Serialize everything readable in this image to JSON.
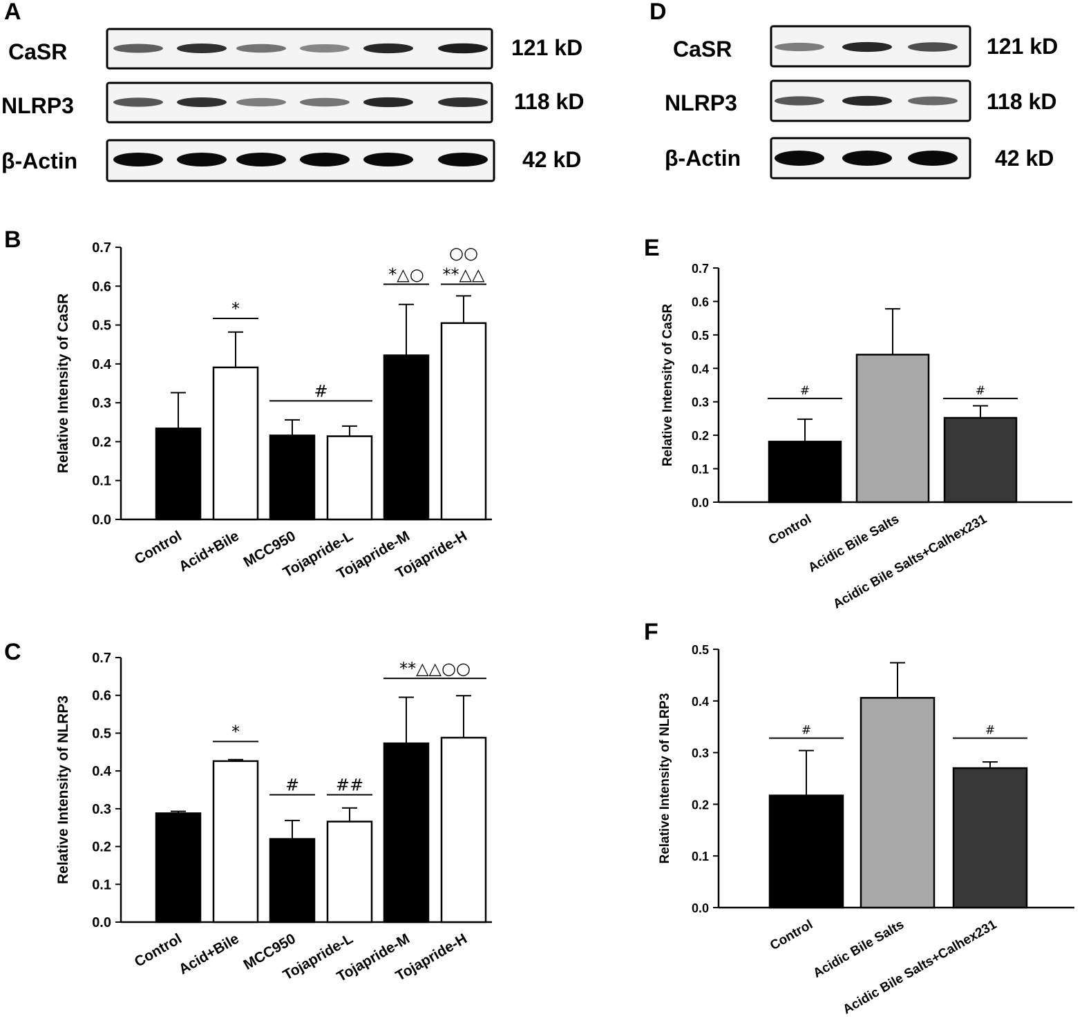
{
  "panels": {
    "A": "A",
    "B": "B",
    "C": "C",
    "D": "D",
    "E": "E",
    "F": "F"
  },
  "blots": [
    {
      "panel": "A",
      "rows": [
        {
          "protein": "CaSR",
          "size": "121 kD",
          "intensity": [
            0.55,
            0.8,
            0.45,
            0.35,
            0.85,
            0.9
          ]
        },
        {
          "protein": "NLRP3",
          "size": "118 kD",
          "intensity": [
            0.6,
            0.8,
            0.4,
            0.45,
            0.85,
            0.8
          ]
        },
        {
          "protein": "β-Actin",
          "size": "42 kD",
          "intensity": [
            1,
            1,
            1,
            1,
            1,
            1
          ]
        }
      ]
    },
    {
      "panel": "D",
      "rows": [
        {
          "protein": "CaSR",
          "size": "121 kD",
          "intensity": [
            0.4,
            0.85,
            0.65
          ]
        },
        {
          "protein": "NLRP3",
          "size": "118 kD",
          "intensity": [
            0.6,
            0.85,
            0.5
          ]
        },
        {
          "protein": "β-Actin",
          "size": "42 kD",
          "intensity": [
            1,
            1,
            1
          ]
        }
      ]
    }
  ],
  "chart_data": [
    {
      "panel": "B",
      "type": "bar",
      "ylabel": "Relative Intensity of CaSR",
      "ylim": [
        0,
        0.7
      ],
      "yticks": [
        "0.0",
        "0.1",
        "0.2",
        "0.3",
        "0.4",
        "0.5",
        "0.6",
        "0.7"
      ],
      "categories": [
        "Control",
        "Acid+Bile",
        "MCC950",
        "Tojapride-L",
        "Tojapride-M",
        "Tojapride-H"
      ],
      "values": [
        0.234,
        0.391,
        0.216,
        0.214,
        0.422,
        0.505
      ],
      "errors": [
        0.092,
        0.091,
        0.04,
        0.026,
        0.131,
        0.07
      ],
      "colors": [
        "#000000",
        "#ffffff",
        "#000000",
        "#ffffff",
        "#000000",
        "#ffffff"
      ],
      "annotations": [
        {
          "text": "*",
          "from": 1,
          "to": 1,
          "y": 0.517
        },
        {
          "text": "#",
          "from": 2,
          "to": 3,
          "y": 0.305
        },
        {
          "text": "*△○",
          "from": 4,
          "to": 4,
          "y": 0.605
        },
        {
          "text": "**△△",
          "from": 5,
          "to": 5,
          "y": 0.605
        },
        {
          "text": "○○",
          "from": 5,
          "to": 5,
          "y": 0.66,
          "noline": true
        }
      ]
    },
    {
      "panel": "C",
      "type": "bar",
      "ylabel": "Relative Intensity of NLRP3",
      "ylim": [
        0,
        0.7
      ],
      "yticks": [
        "0.0",
        "0.1",
        "0.2",
        "0.3",
        "0.4",
        "0.5",
        "0.6",
        "0.7"
      ],
      "categories": [
        "Control",
        "Acid+Bile",
        "MCC950",
        "Tojapride-L",
        "Tojapride-M",
        "Tojapride-H"
      ],
      "values": [
        0.288,
        0.426,
        0.22,
        0.266,
        0.473,
        0.488
      ],
      "errors": [
        0.005,
        0.004,
        0.049,
        0.036,
        0.122,
        0.111
      ],
      "colors": [
        "#000000",
        "#ffffff",
        "#000000",
        "#ffffff",
        "#000000",
        "#ffffff"
      ],
      "annotations": [
        {
          "text": "*",
          "from": 1,
          "to": 1,
          "y": 0.478
        },
        {
          "text": "#",
          "from": 2,
          "to": 2,
          "y": 0.337
        },
        {
          "text": "##",
          "from": 3,
          "to": 3,
          "y": 0.337
        },
        {
          "text": "**△△○○",
          "from": 4,
          "to": 5,
          "y": 0.645
        }
      ]
    },
    {
      "panel": "E",
      "type": "bar",
      "ylabel": "Relative Intensity of CaSR",
      "ylim": [
        0,
        0.7
      ],
      "yticks": [
        "0.0",
        "0.1",
        "0.2",
        "0.3",
        "0.4",
        "0.5",
        "0.6",
        "0.7"
      ],
      "categories": [
        "Control",
        "Acidic Bile Salts",
        "Acidic Bile Salts+Calhex231"
      ],
      "values": [
        0.181,
        0.441,
        0.252
      ],
      "errors": [
        0.067,
        0.137,
        0.036
      ],
      "colors": [
        "#000000",
        "#a8a8a8",
        "#383838"
      ],
      "annotations": [
        {
          "text": "#",
          "from": 0,
          "to": 0,
          "y": 0.31
        },
        {
          "text": "#",
          "from": 2,
          "to": 2,
          "y": 0.31
        }
      ]
    },
    {
      "panel": "F",
      "type": "bar",
      "ylabel": "Relative Intensity of NLRP3",
      "ylim": [
        0,
        0.5
      ],
      "yticks": [
        "0.0",
        "0.1",
        "0.2",
        "0.3",
        "0.4",
        "0.5"
      ],
      "categories": [
        "Control",
        "Acidic Bile Salts",
        "Acidic Bile Salts+Calhex231"
      ],
      "values": [
        0.217,
        0.406,
        0.27
      ],
      "errors": [
        0.087,
        0.068,
        0.012
      ],
      "colors": [
        "#000000",
        "#a8a8a8",
        "#383838"
      ],
      "annotations": [
        {
          "text": "#",
          "from": 0,
          "to": 0,
          "y": 0.328
        },
        {
          "text": "#",
          "from": 2,
          "to": 2,
          "y": 0.328
        }
      ]
    }
  ]
}
